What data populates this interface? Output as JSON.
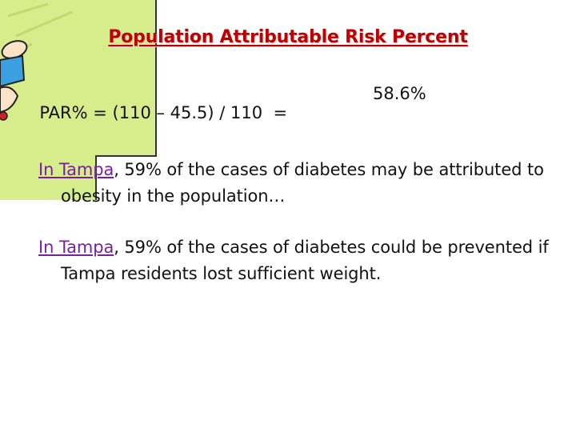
{
  "slide": {
    "title": "Population Attributable Risk Percent",
    "formula": {
      "expression": "PAR% = (110 – 45.5) / 110  =",
      "result": "58.6%"
    },
    "paragraphs": [
      {
        "city": "In Tampa",
        "text": ", 59% of the cases of diabetes may be attributed to obesity in the population…"
      },
      {
        "city": "In Tampa",
        "text": ", 59% of the cases of diabetes could be prevented if Tampa residents lost sufficient weight."
      }
    ]
  },
  "colors": {
    "title": "#c00000",
    "city_link": "#7b1fa2",
    "text": "#111111",
    "clipart_bg": "#d7ec8a"
  },
  "clipart": {
    "icon": "cartoon-hand-icon"
  }
}
